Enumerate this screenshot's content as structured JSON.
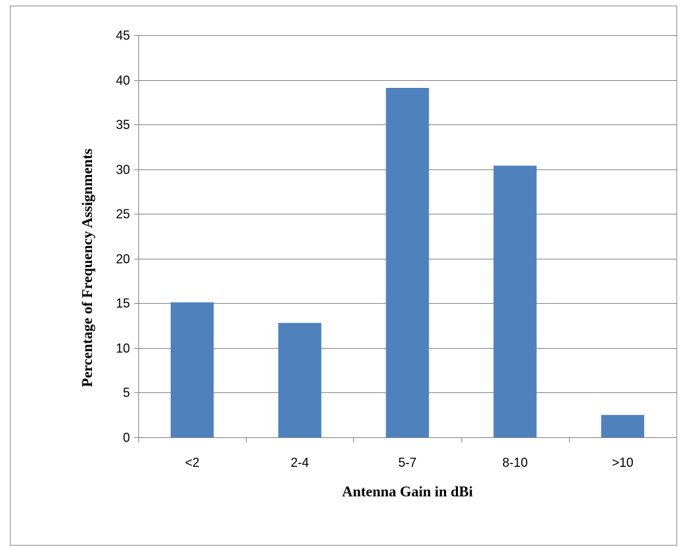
{
  "chart_data": {
    "type": "bar",
    "title": "",
    "xlabel": "Antenna Gain in dBi",
    "ylabel": "Percentage of Frequency Assignments",
    "categories": [
      "<2",
      "2-4",
      "5-7",
      "8-10",
      ">10"
    ],
    "values": [
      15.1,
      12.8,
      39.1,
      30.4,
      2.5
    ],
    "ylim": [
      0,
      45
    ],
    "yticks": [
      0,
      5,
      10,
      15,
      20,
      25,
      30,
      35,
      40,
      45
    ],
    "grid": true,
    "legend": "none",
    "bar_color": "#4f81bd",
    "grid_color": "#868686"
  }
}
